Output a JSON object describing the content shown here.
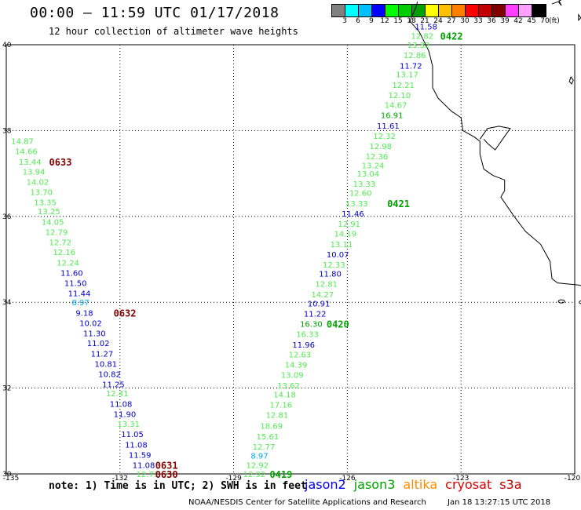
{
  "header": {
    "title": "00:00 – 11:59 UTC 01/17/2018",
    "subtitle": "12 hour collection of altimeter wave heights"
  },
  "colorbar": {
    "colors": [
      "#808080",
      "#00ffff",
      "#00c0ff",
      "#0000ff",
      "#00ff00",
      "#00cc00",
      "#00a000",
      "#ffff00",
      "#ffc000",
      "#ff8000",
      "#ff0000",
      "#c00000",
      "#800000",
      "#ff40ff",
      "#ffa0ff",
      "#000000"
    ],
    "labels": [
      "3",
      "6",
      "9",
      "12",
      "15",
      "18",
      "21",
      "24",
      "27",
      "30",
      "33",
      "36",
      "39",
      "42",
      "45",
      "70",
      "(ft)"
    ]
  },
  "map": {
    "lat_labels": [
      "40",
      "38",
      "36",
      "34",
      "32",
      "30"
    ],
    "lon_labels": [
      "-135",
      "-132",
      "-129",
      "-126",
      "-123",
      "-120"
    ]
  },
  "tracks": [
    {
      "id": "west",
      "points": [
        {
          "v": "14.87",
          "c": "#55e855",
          "lat": 37.76,
          "lon": -134.87
        },
        {
          "v": "14.66",
          "c": "#55e855",
          "lat": 37.52,
          "lon": -134.77
        },
        {
          "v": "13.44",
          "c": "#55e855",
          "lat": 37.28,
          "lon": -134.67
        },
        {
          "v": "13.94",
          "c": "#55e855",
          "lat": 37.05,
          "lon": -134.57
        },
        {
          "v": "14.02",
          "c": "#55e855",
          "lat": 36.81,
          "lon": -134.47
        },
        {
          "v": "13.70",
          "c": "#55e855",
          "lat": 36.57,
          "lon": -134.37
        },
        {
          "v": "13.35",
          "c": "#55e855",
          "lat": 36.33,
          "lon": -134.27
        },
        {
          "v": "13.25",
          "c": "#55e855",
          "lat": 36.12,
          "lon": -134.17
        },
        {
          "v": "14.05",
          "c": "#55e855",
          "lat": 35.88,
          "lon": -134.07
        },
        {
          "v": "12.79",
          "c": "#55e855",
          "lat": 35.64,
          "lon": -133.97
        },
        {
          "v": "12.72",
          "c": "#55e855",
          "lat": 35.4,
          "lon": -133.87
        },
        {
          "v": "12.16",
          "c": "#55e855",
          "lat": 35.17,
          "lon": -133.77
        },
        {
          "v": "12.24",
          "c": "#55e855",
          "lat": 34.93,
          "lon": -133.67
        },
        {
          "v": "11.60",
          "c": "#0000cc",
          "lat": 34.69,
          "lon": -133.57
        },
        {
          "v": "11.50",
          "c": "#0000cc",
          "lat": 34.45,
          "lon": -133.47
        },
        {
          "v": "11.44",
          "c": "#0000cc",
          "lat": 34.21,
          "lon": -133.37
        },
        {
          "v": "8.97",
          "c": "#00aaff",
          "lat": 34.0,
          "lon": -133.27
        },
        {
          "v": "9.18",
          "c": "#0000cc",
          "lat": 33.76,
          "lon": -133.17
        },
        {
          "v": "10.02",
          "c": "#0000cc",
          "lat": 33.52,
          "lon": -133.07
        },
        {
          "v": "11.30",
          "c": "#0000cc",
          "lat": 33.28,
          "lon": -132.97
        },
        {
          "v": "11.02",
          "c": "#0000cc",
          "lat": 33.05,
          "lon": -132.87
        },
        {
          "v": "11.27",
          "c": "#0000cc",
          "lat": 32.81,
          "lon": -132.77
        },
        {
          "v": "10.81",
          "c": "#0000cc",
          "lat": 32.57,
          "lon": -132.67
        },
        {
          "v": "10.82",
          "c": "#0000cc",
          "lat": 32.33,
          "lon": -132.57
        },
        {
          "v": "11.25",
          "c": "#0000cc",
          "lat": 32.09,
          "lon": -132.47
        },
        {
          "v": "12.41",
          "c": "#55e855",
          "lat": 31.88,
          "lon": -132.37
        },
        {
          "v": "11.08",
          "c": "#0000cc",
          "lat": 31.64,
          "lon": -132.27
        },
        {
          "v": "11.90",
          "c": "#0000cc",
          "lat": 31.4,
          "lon": -132.17
        },
        {
          "v": "13.31",
          "c": "#55e855",
          "lat": 31.17,
          "lon": -132.07
        },
        {
          "v": "11.05",
          "c": "#0000cc",
          "lat": 30.93,
          "lon": -131.97
        },
        {
          "v": "11.08",
          "c": "#0000cc",
          "lat": 30.69,
          "lon": -131.87
        },
        {
          "v": "11.59",
          "c": "#0000cc",
          "lat": 30.45,
          "lon": -131.77
        },
        {
          "v": "11.08",
          "c": "#0000cc",
          "lat": 30.21,
          "lon": -131.67
        },
        {
          "v": "12.71",
          "c": "#55e855",
          "lat": 30.0,
          "lon": -131.57
        }
      ],
      "times": [
        {
          "t": "0633",
          "c": "#800000",
          "lat": 37.28,
          "lon": -133.87
        },
        {
          "t": "0632",
          "c": "#800000",
          "lat": 33.76,
          "lon": -132.17
        },
        {
          "t": "0631",
          "c": "#800000",
          "lat": 30.21,
          "lon": -131.07
        },
        {
          "t": "0630",
          "c": "#800000",
          "lat": 30.0,
          "lon": -131.07
        }
      ]
    },
    {
      "id": "east",
      "points": [
        {
          "v": "12.92",
          "c": "#55e855",
          "lat": 30.0,
          "lon": -128.75
        },
        {
          "v": "12.92",
          "c": "#55e855",
          "lat": 30.21,
          "lon": -128.67
        },
        {
          "v": "8.97",
          "c": "#00aaff",
          "lat": 30.43,
          "lon": -128.55
        },
        {
          "v": "12.77",
          "c": "#55e855",
          "lat": 30.64,
          "lon": -128.5
        },
        {
          "v": "15.61",
          "c": "#55e855",
          "lat": 30.88,
          "lon": -128.4
        },
        {
          "v": "18.69",
          "c": "#55e855",
          "lat": 31.12,
          "lon": -128.3
        },
        {
          "v": "12.81",
          "c": "#55e855",
          "lat": 31.38,
          "lon": -128.15
        },
        {
          "v": "17.16",
          "c": "#55e855",
          "lat": 31.62,
          "lon": -128.05
        },
        {
          "v": "14.18",
          "c": "#55e855",
          "lat": 31.86,
          "lon": -127.95
        },
        {
          "v": "13.62",
          "c": "#55e855",
          "lat": 32.07,
          "lon": -127.85
        },
        {
          "v": "13.09",
          "c": "#55e855",
          "lat": 32.31,
          "lon": -127.75
        },
        {
          "v": "14.39",
          "c": "#55e855",
          "lat": 32.55,
          "lon": -127.65
        },
        {
          "v": "12.63",
          "c": "#55e855",
          "lat": 32.79,
          "lon": -127.55
        },
        {
          "v": "11.96",
          "c": "#0000cc",
          "lat": 33.02,
          "lon": -127.45
        },
        {
          "v": "16.33",
          "c": "#55e855",
          "lat": 33.26,
          "lon": -127.35
        },
        {
          "v": "16.30",
          "c": "#00a000",
          "lat": 33.5,
          "lon": -127.25
        },
        {
          "v": "11.22",
          "c": "#0000cc",
          "lat": 33.74,
          "lon": -127.15
        },
        {
          "v": "10.91",
          "c": "#0000cc",
          "lat": 33.98,
          "lon": -127.05
        },
        {
          "v": "14.27",
          "c": "#55e855",
          "lat": 34.19,
          "lon": -126.95
        },
        {
          "v": "12.81",
          "c": "#55e855",
          "lat": 34.43,
          "lon": -126.85
        },
        {
          "v": "11.80",
          "c": "#0000cc",
          "lat": 34.67,
          "lon": -126.75
        },
        {
          "v": "12.33",
          "c": "#55e855",
          "lat": 34.88,
          "lon": -126.65
        },
        {
          "v": "10.07",
          "c": "#0000cc",
          "lat": 35.12,
          "lon": -126.55
        },
        {
          "v": "13.11",
          "c": "#55e855",
          "lat": 35.36,
          "lon": -126.45
        },
        {
          "v": "14.19",
          "c": "#55e855",
          "lat": 35.6,
          "lon": -126.35
        },
        {
          "v": "12.91",
          "c": "#55e855",
          "lat": 35.83,
          "lon": -126.25
        },
        {
          "v": "11.46",
          "c": "#0000cc",
          "lat": 36.07,
          "lon": -126.15
        },
        {
          "v": "13.33",
          "c": "#55e855",
          "lat": 36.31,
          "lon": -126.05
        },
        {
          "v": "12.60",
          "c": "#55e855",
          "lat": 36.55,
          "lon": -125.95
        },
        {
          "v": "13.33",
          "c": "#55e855",
          "lat": 36.76,
          "lon": -125.85
        },
        {
          "v": "13.04",
          "c": "#55e855",
          "lat": 37.0,
          "lon": -125.75
        },
        {
          "v": "13.24",
          "c": "#55e855",
          "lat": 37.19,
          "lon": -125.62
        },
        {
          "v": "12.36",
          "c": "#55e855",
          "lat": 37.4,
          "lon": -125.52
        },
        {
          "v": "12.98",
          "c": "#55e855",
          "lat": 37.64,
          "lon": -125.42
        },
        {
          "v": "12.32",
          "c": "#55e855",
          "lat": 37.88,
          "lon": -125.32
        },
        {
          "v": "11.61",
          "c": "#0000cc",
          "lat": 38.12,
          "lon": -125.22
        },
        {
          "v": "16.91",
          "c": "#00a000",
          "lat": 38.36,
          "lon": -125.12
        },
        {
          "v": "14.67",
          "c": "#55e855",
          "lat": 38.6,
          "lon": -125.02
        },
        {
          "v": "12.10",
          "c": "#55e855",
          "lat": 38.83,
          "lon": -124.92
        },
        {
          "v": "12.21",
          "c": "#55e855",
          "lat": 39.07,
          "lon": -124.82
        },
        {
          "v": "13.17",
          "c": "#55e855",
          "lat": 39.31,
          "lon": -124.72
        },
        {
          "v": "11.72",
          "c": "#0000cc",
          "lat": 39.52,
          "lon": -124.62
        },
        {
          "v": "12.86",
          "c": "#55e855",
          "lat": 39.76,
          "lon": -124.52
        },
        {
          "v": "13.32",
          "c": "#55e855",
          "lat": 40.0,
          "lon": -124.42
        },
        {
          "v": "12.82",
          "c": "#55e855",
          "lat": 40.21,
          "lon": -124.32
        },
        {
          "v": "11.58",
          "c": "#0000cc",
          "lat": 40.43,
          "lon": -124.22
        }
      ],
      "times": [
        {
          "t": "0419",
          "c": "#00a000",
          "lat": 30.0,
          "lon": -128.05
        },
        {
          "t": "0420",
          "c": "#00a000",
          "lat": 33.5,
          "lon": -126.55
        },
        {
          "t": "0421",
          "c": "#00a000",
          "lat": 36.31,
          "lon": -124.95
        },
        {
          "t": "0422",
          "c": "#00a000",
          "lat": 40.21,
          "lon": -123.55
        }
      ]
    }
  ],
  "legend": {
    "note": "note: 1) Time is in UTC; 2) SWH is in feet",
    "sats": [
      {
        "name": "jason2",
        "color": "#0000ff"
      },
      {
        "name": "jason3",
        "color": "#00a000"
      },
      {
        "name": "altika",
        "color": "#ff8c00"
      },
      {
        "name": "cryosat",
        "color": "#e00000"
      },
      {
        "name": "s3a",
        "color": "#c00000"
      }
    ]
  },
  "footer": {
    "credit": "NOAA/NESDIS Center for Satellite Applications and Research",
    "timestamp": "Jan 18 13:27:15 UTC 2018"
  }
}
